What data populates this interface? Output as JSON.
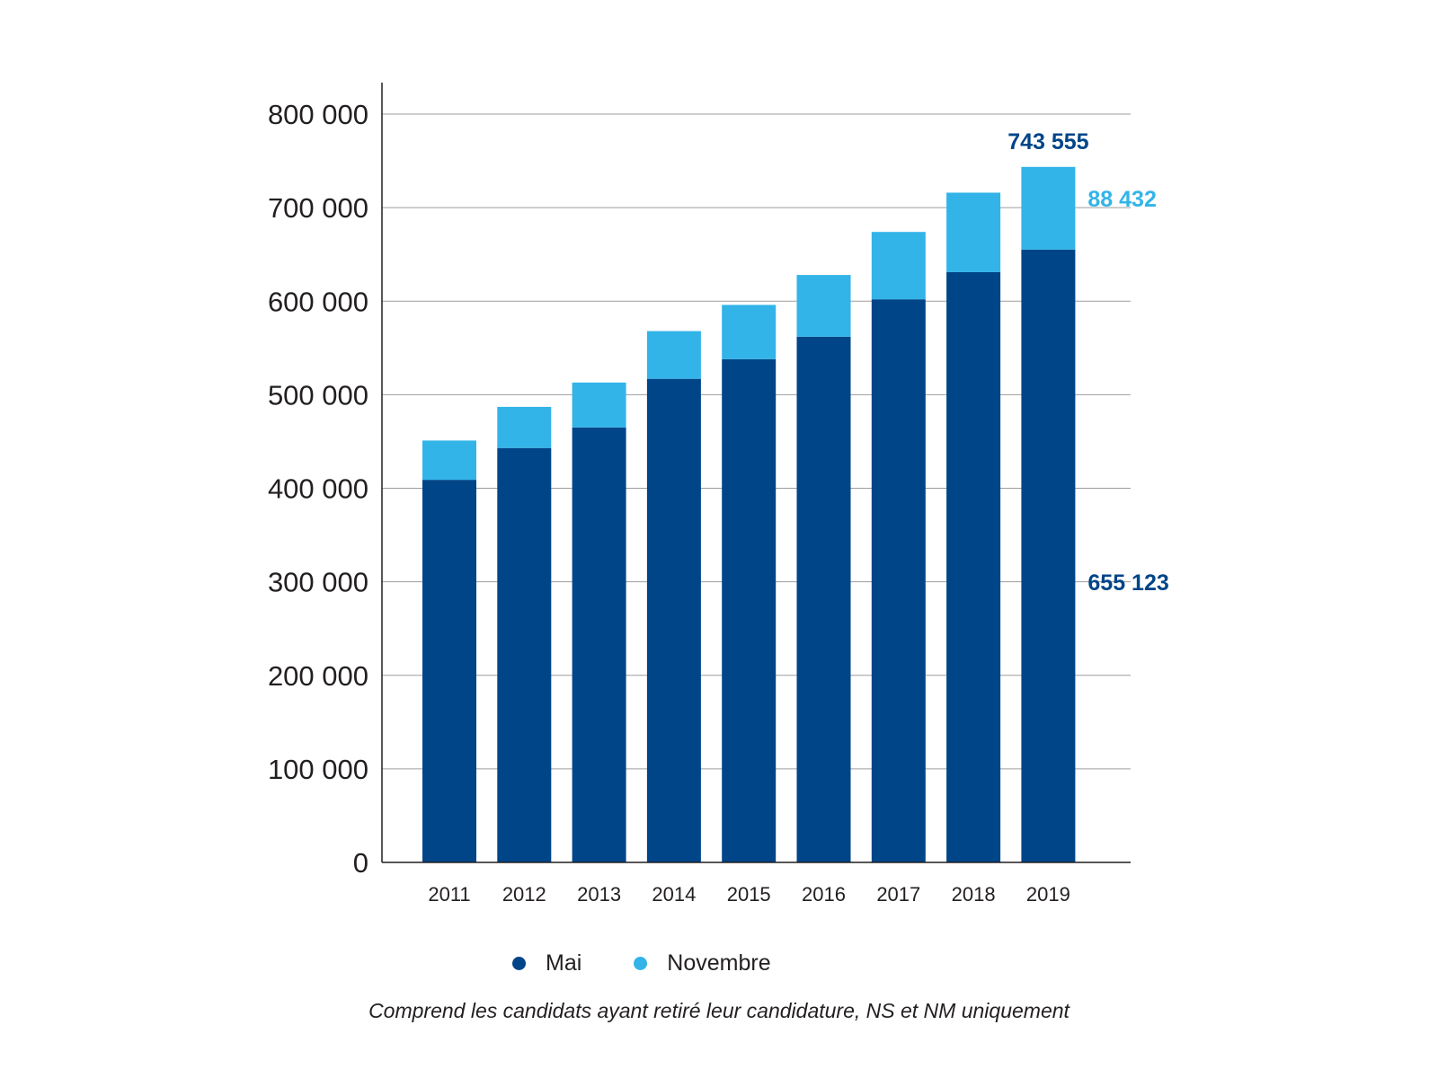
{
  "chart_data": {
    "type": "bar",
    "stacked": true,
    "categories": [
      "2011",
      "2012",
      "2013",
      "2014",
      "2015",
      "2016",
      "2017",
      "2018",
      "2019"
    ],
    "series": [
      {
        "name": "Mai",
        "color": "#004588",
        "values": [
          409000,
          443000,
          465000,
          517000,
          538000,
          562000,
          602000,
          631000,
          655123
        ]
      },
      {
        "name": "Novembre",
        "color": "#32b4e8",
        "values": [
          42000,
          44000,
          48000,
          51000,
          58000,
          66000,
          72000,
          85000,
          88432
        ]
      }
    ],
    "ylim": [
      0,
      800000
    ],
    "yticks": [
      "0",
      "100 000",
      "200 000",
      "300 000",
      "400 000",
      "500 000",
      "600 000",
      "700 000",
      "800 000"
    ],
    "grid": true,
    "legend_position": "bottom",
    "annotations": {
      "total": "743 555",
      "novembre": "88 432",
      "mai": "655 123"
    },
    "note": "Comprend les candidats ayant retiré leur candidature, NS et NM uniquement"
  }
}
